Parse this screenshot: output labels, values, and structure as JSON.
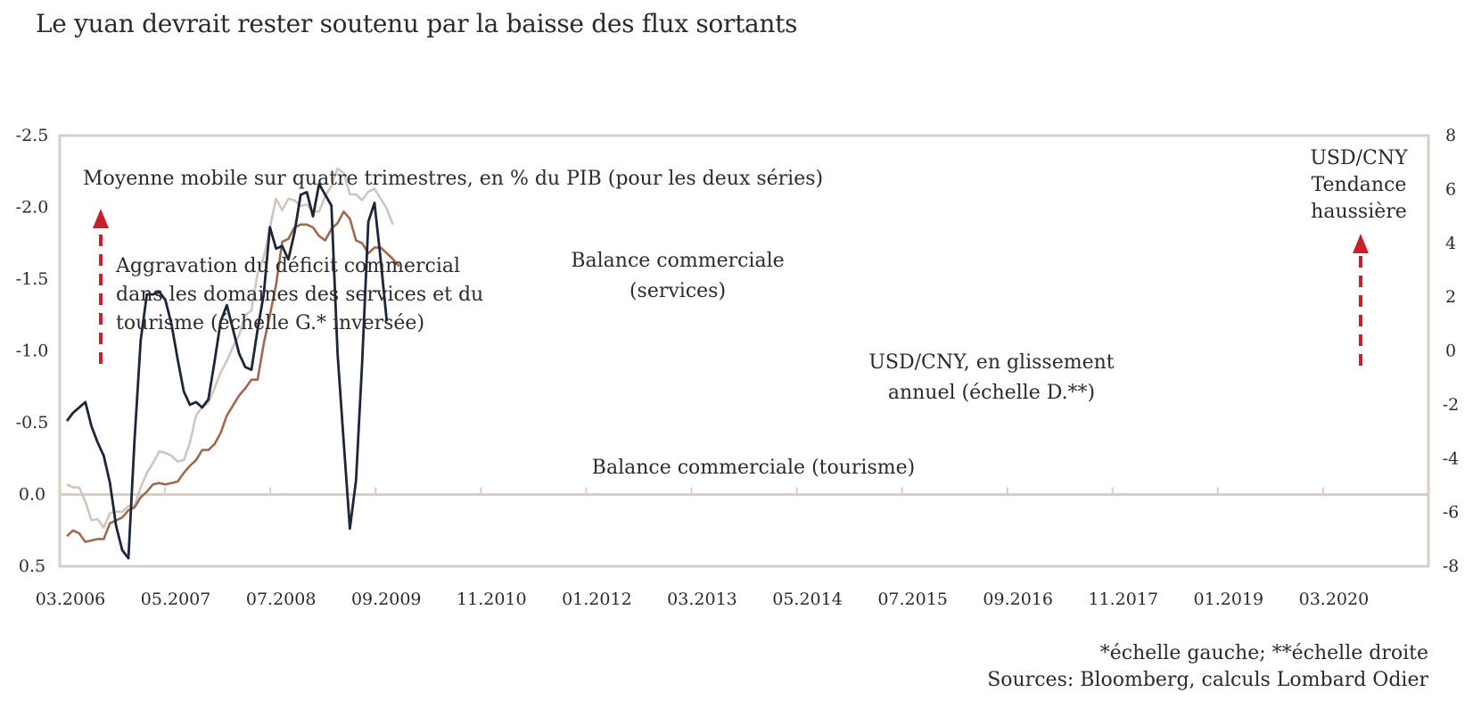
{
  "title": "Le yuan devrait rester soutenu par la baisse des flux sortants",
  "chart_data": {
    "type": "line",
    "x_tick_labels": [
      "03.2006",
      "05.2007",
      "07.2008",
      "09.2009",
      "11.2010",
      "01.2012",
      "03.2013",
      "05.2014",
      "07.2015",
      "09.2016",
      "11.2017",
      "01.2019",
      "03.2020"
    ],
    "left_axis": {
      "ylim": [
        0.5,
        -2.5
      ],
      "inverted": true,
      "tick_labels": [
        "-2.5",
        "-2.0",
        "-1.5",
        "-1.0",
        "-0.5",
        "0.0",
        "0.5"
      ]
    },
    "right_axis": {
      "ylim": [
        -8,
        8
      ],
      "tick_labels": [
        "8",
        "6",
        "4",
        "2",
        "0",
        "-2",
        "-4",
        "-6",
        "-8"
      ]
    },
    "quarters": [
      "2006Q1",
      "2006Q2",
      "2006Q3",
      "2006Q4",
      "2007Q1",
      "2007Q2",
      "2007Q3",
      "2007Q4",
      "2008Q1",
      "2008Q2",
      "2008Q3",
      "2008Q4",
      "2009Q1",
      "2009Q2",
      "2009Q3",
      "2009Q4",
      "2010Q1",
      "2010Q2",
      "2010Q3",
      "2010Q4",
      "2011Q1",
      "2011Q2",
      "2011Q3",
      "2011Q4",
      "2012Q1",
      "2012Q2",
      "2012Q3",
      "2012Q4",
      "2013Q1",
      "2013Q2",
      "2013Q3",
      "2013Q4",
      "2014Q1",
      "2014Q2",
      "2014Q3",
      "2014Q4",
      "2015Q1",
      "2015Q2",
      "2015Q3",
      "2015Q4",
      "2016Q1",
      "2016Q2",
      "2016Q3",
      "2016Q4",
      "2017Q1",
      "2017Q2",
      "2017Q3",
      "2017Q4",
      "2018Q1",
      "2018Q2",
      "2018Q3",
      "2018Q4",
      "2019Q1",
      "2019Q2",
      "2019Q3"
    ],
    "series": [
      {
        "name": "Balance commerciale (services)",
        "axis": "left",
        "color": "#d1c5bf",
        "values": [
          -0.07,
          -0.05,
          -0.05,
          0.05,
          0.18,
          0.17,
          0.23,
          0.13,
          0.12,
          0.12,
          0.08,
          0.08,
          -0.05,
          -0.15,
          -0.22,
          -0.3,
          -0.29,
          -0.27,
          -0.23,
          -0.24,
          -0.36,
          -0.55,
          -0.61,
          -0.64,
          -0.74,
          -0.85,
          -0.93,
          -1.03,
          -1.11,
          -1.25,
          -1.28,
          -1.54,
          -1.65,
          -1.86,
          -2.06,
          -1.98,
          -2.06,
          -2.05,
          -2.01,
          -2.02,
          -1.97,
          -1.97,
          -2.08,
          -2.15,
          -2.27,
          -2.24,
          -2.09,
          -2.09,
          -2.05,
          -2.11,
          -2.13,
          -2.06,
          -1.99,
          -1.88
        ]
      },
      {
        "name": "Balance commerciale (tourisme)",
        "axis": "left",
        "color": "#a0694f",
        "values": [
          0.29,
          0.25,
          0.27,
          0.33,
          0.32,
          0.31,
          0.31,
          0.2,
          0.18,
          0.16,
          0.11,
          0.09,
          0.02,
          -0.02,
          -0.07,
          -0.08,
          -0.07,
          -0.08,
          -0.09,
          -0.15,
          -0.2,
          -0.24,
          -0.31,
          -0.31,
          -0.35,
          -0.43,
          -0.55,
          -0.62,
          -0.69,
          -0.74,
          -0.8,
          -0.8,
          -1.05,
          -1.25,
          -1.46,
          -1.76,
          -1.78,
          -1.86,
          -1.88,
          -1.88,
          -1.86,
          -1.8,
          -1.77,
          -1.85,
          -1.89,
          -1.97,
          -1.92,
          -1.77,
          -1.75,
          -1.68,
          -1.72,
          -1.72,
          -1.68,
          -1.64,
          -1.59
        ]
      },
      {
        "name": "USD/CNY, en glissement annuel (échelle D.**)",
        "axis": "right",
        "color": "#1b2638",
        "values": [
          -2.6,
          -2.3,
          -2.1,
          -1.9,
          -2.8,
          -3.4,
          -3.9,
          -4.9,
          -6.5,
          -7.4,
          -7.7,
          -3.3,
          0.4,
          2.1,
          2.1,
          2.2,
          1.9,
          1.0,
          -0.3,
          -1.5,
          -2.0,
          -1.9,
          -2.1,
          -1.8,
          -0.4,
          1.1,
          1.7,
          0.8,
          -0.1,
          -0.6,
          -0.7,
          0.8,
          2.1,
          4.6,
          3.8,
          3.9,
          3.4,
          4.4,
          5.8,
          5.9,
          5.0,
          6.2,
          5.8,
          5.4,
          -0.1,
          -3.4,
          -6.6,
          -4.8,
          -0.4,
          4.8,
          5.5,
          3.4,
          1.1
        ]
      }
    ],
    "annotations": {
      "subtitle": "Moyenne  mobile sur quatre trimestres, en % du PIB (pour les deux séries)",
      "left_note": [
        "Aggravation du déficit commercial",
        "dans les domaines des services et du",
        "tourisme (échelle G.* inversée)"
      ],
      "services_label": [
        "Balance commerciale",
        "(services)"
      ],
      "tourism_label": "Balance commerciale (tourisme)",
      "usdcny_label": [
        "USD/CNY, en glissement",
        "annuel (échelle D.**)"
      ],
      "right_note": [
        "USD/CNY",
        "Tendance",
        "haussière"
      ]
    }
  },
  "footer": {
    "scale_note": "*échelle gauche; **échelle droite",
    "sources": "Sources: Bloomberg, calculs Lombard Odier"
  },
  "colors": {
    "frame": "#d9cdc8",
    "arrow": "#c8202a",
    "text": "#2b2b2b"
  }
}
